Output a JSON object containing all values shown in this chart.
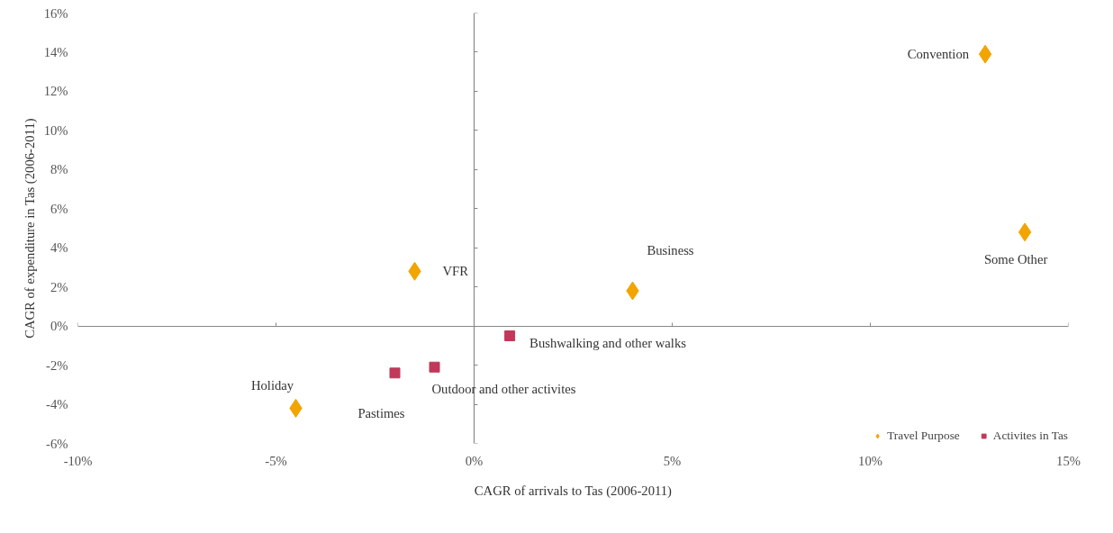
{
  "chart_data": {
    "type": "scatter",
    "xlabel": "CAGR of arrivals to Tas (2006-2011)",
    "ylabel": "CAGR of expenditure in Tas (2006-2011)",
    "xlim": [
      -10,
      15
    ],
    "ylim": [
      -6,
      16
    ],
    "xticks": [
      {
        "value": -10,
        "label": "-10%"
      },
      {
        "value": -5,
        "label": "-5%"
      },
      {
        "value": 0,
        "label": "0%"
      },
      {
        "value": 5,
        "label": "5%"
      },
      {
        "value": 10,
        "label": "10%"
      },
      {
        "value": 15,
        "label": "15%"
      }
    ],
    "yticks": [
      {
        "value": -6,
        "label": "-6%"
      },
      {
        "value": -4,
        "label": "-4%"
      },
      {
        "value": -2,
        "label": "-2%"
      },
      {
        "value": 0,
        "label": "0%"
      },
      {
        "value": 2,
        "label": "2%"
      },
      {
        "value": 4,
        "label": "4%"
      },
      {
        "value": 6,
        "label": "6%"
      },
      {
        "value": 8,
        "label": "8%"
      },
      {
        "value": 10,
        "label": "10%"
      },
      {
        "value": 12,
        "label": "12%"
      },
      {
        "value": 14,
        "label": "14%"
      },
      {
        "value": 16,
        "label": "16%"
      }
    ],
    "legend": "bottom right",
    "series": [
      {
        "name": "Travel Purpose",
        "color": "#f2a400",
        "marker": "diamond",
        "x": [
          12.9,
          13.9,
          4.0,
          -1.5,
          -4.5
        ],
        "values": [
          13.9,
          4.8,
          1.8,
          2.8,
          -4.2
        ]
      },
      {
        "name": "Activites in Tas",
        "color": "#c0395a",
        "marker": "square",
        "x": [
          -2.0,
          -1.0,
          0.9
        ],
        "values": [
          -2.4,
          -2.1,
          -0.5
        ]
      }
    ],
    "annotations": [
      {
        "text": "Convention",
        "x": 12.9,
        "y": 13.9
      },
      {
        "text": "Some Other",
        "x": 13.9,
        "y": 4.8
      },
      {
        "text": "Business",
        "x": 4.0,
        "y": 1.8
      },
      {
        "text": "VFR",
        "x": -1.5,
        "y": 2.8
      },
      {
        "text": "Holiday",
        "x": -4.5,
        "y": -4.2
      },
      {
        "text": "Pastimes",
        "x": -2.0,
        "y": -2.4
      },
      {
        "text": "Outdoor and other activites",
        "x": -1.0,
        "y": -2.1
      },
      {
        "text": "Bushwalking and other walks",
        "x": 0.9,
        "y": -0.5
      }
    ]
  }
}
